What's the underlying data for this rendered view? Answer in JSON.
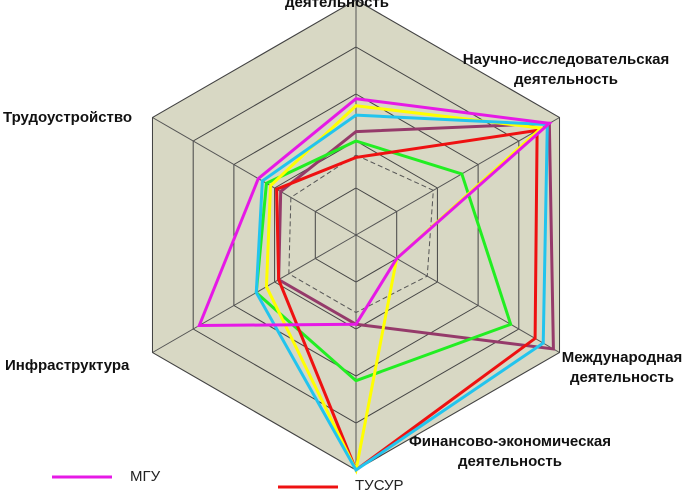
{
  "chart_data": {
    "type": "radar",
    "title": "",
    "axes": [
      "деятельность",
      "Научно-исследовательская деятельность",
      "Международная деятельность",
      "Финансово-экономическая деятельность",
      "Инфраструктура",
      "Трудоустройство"
    ],
    "axis_label_lines": [
      [
        "деятельность"
      ],
      [
        "Научно-исследовательская",
        "деятельность"
      ],
      [
        "Международная",
        "деятельность"
      ],
      [
        "Финансово-экономическая",
        "деятельность"
      ],
      [
        "Инфраструктура"
      ],
      [
        "Трудоустройство"
      ]
    ],
    "scale": {
      "min": 0,
      "max": 100,
      "rings": 5
    },
    "background_color": "#d8d8c4",
    "series": [
      {
        "name": "МГУ",
        "color": "#e619e6",
        "values": [
          58,
          95,
          20,
          38,
          77,
          48
        ]
      },
      {
        "name": "",
        "color": "#22c4ee",
        "values": [
          51,
          94,
          92,
          100,
          49,
          46
        ]
      },
      {
        "name": "",
        "color": "#ffff00",
        "values": [
          55,
          91,
          20,
          100,
          44,
          42
        ]
      },
      {
        "name": "ТУСУР",
        "color": "#ee1111",
        "values": [
          33,
          89,
          88,
          100,
          38,
          39
        ]
      },
      {
        "name": "",
        "color": "#22ee22",
        "values": [
          40,
          52,
          76,
          62,
          49,
          44
        ]
      },
      {
        "name": "",
        "color": "#953a6a",
        "values": [
          44,
          95,
          97,
          38,
          38,
          37
        ]
      },
      {
        "name": "",
        "color": "#555555",
        "dashed": true,
        "values": [
          34,
          38,
          35,
          33,
          33,
          32
        ]
      }
    ],
    "legend": [
      {
        "label": "МГУ",
        "color": "#e619e6"
      },
      {
        "label": "ТУСУР",
        "color": "#ee1111"
      }
    ]
  }
}
